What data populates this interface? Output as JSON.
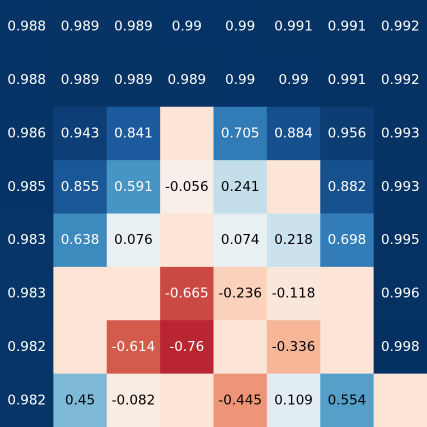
{
  "chart_data": {
    "type": "heatmap",
    "title": "",
    "xlabel": "",
    "ylabel": "",
    "grid": false,
    "legend": "none",
    "colormap": "RdBu",
    "color_range": [
      -1,
      1
    ],
    "values": [
      [
        0.988,
        0.989,
        0.989,
        0.99,
        0.99,
        0.991,
        0.991,
        0.992
      ],
      [
        0.988,
        0.989,
        0.989,
        0.989,
        0.99,
        0.99,
        0.991,
        0.992
      ],
      [
        0.986,
        0.943,
        0.841,
        null,
        0.705,
        0.884,
        0.956,
        0.993
      ],
      [
        0.985,
        0.855,
        0.591,
        -0.056,
        0.241,
        null,
        0.882,
        0.993
      ],
      [
        0.983,
        0.638,
        0.076,
        null,
        0.074,
        0.218,
        0.698,
        0.995
      ],
      [
        0.983,
        null,
        null,
        -0.665,
        -0.236,
        -0.118,
        null,
        0.996
      ],
      [
        0.982,
        null,
        -0.614,
        -0.76,
        null,
        -0.336,
        null,
        0.998
      ],
      [
        0.982,
        0.45,
        -0.082,
        null,
        -0.445,
        0.109,
        0.554,
        null
      ]
    ],
    "labels": [
      [
        "0.988",
        "0.989",
        "0.989",
        "0.99",
        "0.99",
        "0.991",
        "0.991",
        "0.992"
      ],
      [
        "0.988",
        "0.989",
        "0.989",
        "0.989",
        "0.99",
        "0.99",
        "0.991",
        "0.992"
      ],
      [
        "0.986",
        "0.943",
        "0.841",
        "",
        "0.705",
        "0.884",
        "0.956",
        "0.993"
      ],
      [
        "0.985",
        "0.855",
        "0.591",
        "-0.056",
        "0.241",
        "",
        "0.882",
        "0.993"
      ],
      [
        "0.983",
        "0.638",
        "0.076",
        "",
        "0.074",
        "0.218",
        "0.698",
        "0.995"
      ],
      [
        "0.983",
        "",
        "",
        "-0.665",
        "-0.236",
        "-0.118",
        "",
        "0.996"
      ],
      [
        "0.982",
        "",
        "-0.614",
        "-0.76",
        "",
        "-0.336",
        "",
        "0.998"
      ],
      [
        "0.982",
        "0.45",
        "-0.082",
        "",
        "-0.445",
        "0.109",
        "0.554",
        ""
      ]
    ]
  }
}
